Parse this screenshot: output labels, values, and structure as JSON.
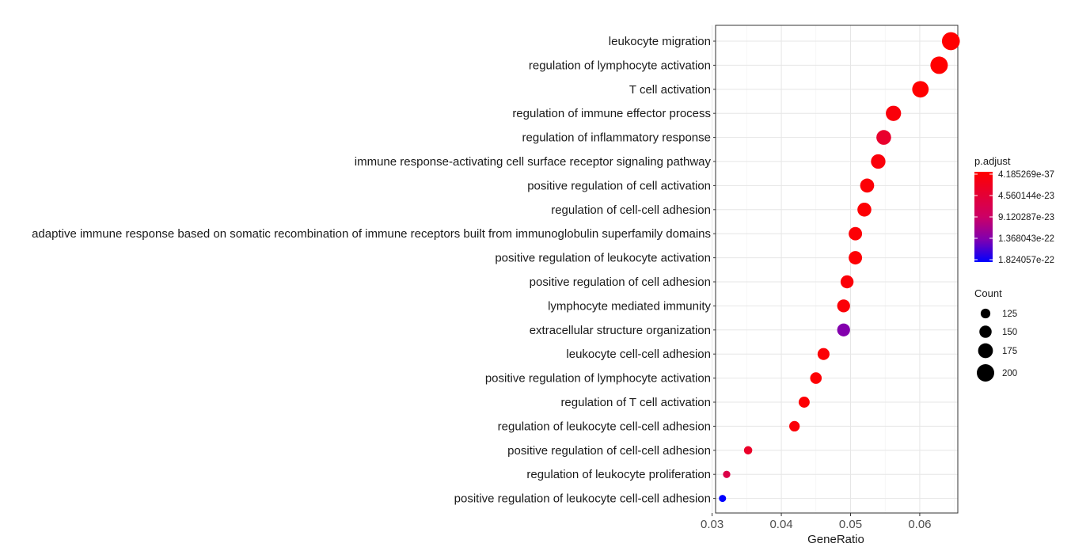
{
  "chart_data": {
    "type": "scatter",
    "subtype": "dot-plot",
    "xlabel": "GeneRatio",
    "ylabel": "",
    "xlim": [
      0.0305,
      0.0655
    ],
    "xticks": [
      0.03,
      0.04,
      0.05,
      0.06
    ],
    "xtick_labels": [
      "0.03",
      "0.04",
      "0.05",
      "0.06"
    ],
    "grid": true,
    "legend_position": "right",
    "color_legend": {
      "title": "p.adjust",
      "labels": [
        "4.185269e-37",
        "4.560144e-23",
        "9.120287e-23",
        "1.368043e-22",
        "1.824057e-22"
      ],
      "colors": [
        "#ff0000",
        "#0000ff"
      ]
    },
    "size_legend": {
      "title": "Count",
      "labels": [
        "125",
        "150",
        "175",
        "200"
      ],
      "values": [
        125,
        150,
        175,
        200
      ]
    },
    "points": [
      {
        "term": "leukocyte migration",
        "gene_ratio": 0.0645,
        "count": 205,
        "p_adjust_norm": 0.0
      },
      {
        "term": "regulation of lymphocyte activation",
        "gene_ratio": 0.0628,
        "count": 200,
        "p_adjust_norm": 0.0
      },
      {
        "term": "T cell activation",
        "gene_ratio": 0.0601,
        "count": 191,
        "p_adjust_norm": 0.0
      },
      {
        "term": "regulation of immune effector process",
        "gene_ratio": 0.0562,
        "count": 179,
        "p_adjust_norm": 0.05
      },
      {
        "term": "regulation of inflammatory response",
        "gene_ratio": 0.0548,
        "count": 174,
        "p_adjust_norm": 0.22
      },
      {
        "term": "immune response-activating cell surface receptor signaling pathway",
        "gene_ratio": 0.054,
        "count": 172,
        "p_adjust_norm": 0.05
      },
      {
        "term": "positive regulation of cell activation",
        "gene_ratio": 0.0524,
        "count": 167,
        "p_adjust_norm": 0.03
      },
      {
        "term": "regulation of cell-cell adhesion",
        "gene_ratio": 0.052,
        "count": 166,
        "p_adjust_norm": 0.02
      },
      {
        "term": "adaptive immune response based on somatic recombination of immune receptors built from immunoglobulin superfamily domains",
        "gene_ratio": 0.0507,
        "count": 161,
        "p_adjust_norm": 0.03
      },
      {
        "term": "positive regulation of leukocyte activation",
        "gene_ratio": 0.0507,
        "count": 161,
        "p_adjust_norm": 0.02
      },
      {
        "term": "positive regulation of cell adhesion",
        "gene_ratio": 0.0495,
        "count": 157,
        "p_adjust_norm": 0.04
      },
      {
        "term": "lymphocyte mediated immunity",
        "gene_ratio": 0.049,
        "count": 156,
        "p_adjust_norm": 0.04
      },
      {
        "term": "extracellular structure organization",
        "gene_ratio": 0.049,
        "count": 156,
        "p_adjust_norm": 0.74
      },
      {
        "term": "leukocyte cell-cell adhesion",
        "gene_ratio": 0.0461,
        "count": 147,
        "p_adjust_norm": 0.03
      },
      {
        "term": "positive regulation of lymphocyte activation",
        "gene_ratio": 0.045,
        "count": 143,
        "p_adjust_norm": 0.02
      },
      {
        "term": "regulation of T cell activation",
        "gene_ratio": 0.0433,
        "count": 138,
        "p_adjust_norm": 0.02
      },
      {
        "term": "regulation of leukocyte cell-cell adhesion",
        "gene_ratio": 0.0419,
        "count": 133,
        "p_adjust_norm": 0.04
      },
      {
        "term": "positive regulation of cell-cell adhesion",
        "gene_ratio": 0.0352,
        "count": 112,
        "p_adjust_norm": 0.2
      },
      {
        "term": "regulation of leukocyte proliferation",
        "gene_ratio": 0.0321,
        "count": 102,
        "p_adjust_norm": 0.35
      },
      {
        "term": "positive regulation of leukocyte cell-cell adhesion",
        "gene_ratio": 0.0315,
        "count": 100,
        "p_adjust_norm": 1.0
      }
    ]
  }
}
